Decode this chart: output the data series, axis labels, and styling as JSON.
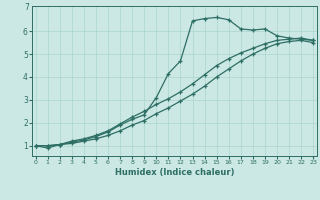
{
  "xlabel": "Humidex (Indice chaleur)",
  "bg_color": "#cce8e4",
  "line_color": "#2d6e65",
  "grid_color": "#aad4ce",
  "x_ticks": [
    0,
    1,
    2,
    3,
    4,
    5,
    6,
    7,
    8,
    9,
    10,
    11,
    12,
    13,
    14,
    15,
    16,
    17,
    18,
    19,
    20,
    21,
    22,
    23
  ],
  "y_ticks": [
    1,
    2,
    3,
    4,
    5,
    6
  ],
  "y_top_label": "7",
  "ylim": [
    0.55,
    7.1
  ],
  "xlim": [
    -0.3,
    23.3
  ],
  "series1_x": [
    0,
    1,
    2,
    3,
    4,
    5,
    6,
    7,
    8,
    9,
    10,
    11,
    12,
    13,
    14,
    15,
    16,
    17,
    18,
    19,
    20,
    21,
    22,
    23
  ],
  "series1_y": [
    1.0,
    0.9,
    1.05,
    1.15,
    1.25,
    1.4,
    1.6,
    1.9,
    2.15,
    2.35,
    3.1,
    4.15,
    4.7,
    6.45,
    6.55,
    6.6,
    6.5,
    6.1,
    6.05,
    6.1,
    5.8,
    5.7,
    5.65,
    5.6
  ],
  "series2_x": [
    0,
    1,
    2,
    3,
    4,
    5,
    6,
    7,
    8,
    9,
    10,
    11,
    12,
    13,
    14,
    15,
    16,
    17,
    18,
    19,
    20,
    21,
    22,
    23
  ],
  "series2_y": [
    1.0,
    1.0,
    1.05,
    1.2,
    1.3,
    1.45,
    1.65,
    1.95,
    2.25,
    2.5,
    2.8,
    3.05,
    3.35,
    3.7,
    4.1,
    4.5,
    4.8,
    5.05,
    5.25,
    5.45,
    5.6,
    5.65,
    5.7,
    5.6
  ],
  "series3_x": [
    0,
    1,
    2,
    3,
    4,
    5,
    6,
    7,
    8,
    9,
    10,
    11,
    12,
    13,
    14,
    15,
    16,
    17,
    18,
    19,
    20,
    21,
    22,
    23
  ],
  "series3_y": [
    1.0,
    1.0,
    1.05,
    1.1,
    1.2,
    1.3,
    1.45,
    1.65,
    1.9,
    2.1,
    2.4,
    2.65,
    2.95,
    3.25,
    3.6,
    4.0,
    4.35,
    4.7,
    5.0,
    5.25,
    5.45,
    5.55,
    5.6,
    5.5
  ]
}
